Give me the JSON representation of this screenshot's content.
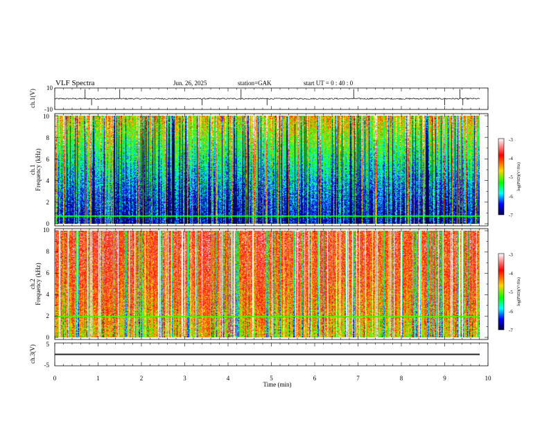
{
  "header": {
    "title": "VLF  Spectra",
    "date": "Jun. 26, 2025",
    "station": "station=GAK",
    "start": "start  UT  =   0  : 40 : 0"
  },
  "chart_data": [
    {
      "type": "line",
      "panel": "ch1-waveform",
      "ylabel": "ch.1(V)",
      "ylim": [
        -10,
        10
      ],
      "yticks": [
        "10",
        "-10"
      ],
      "xlim": [
        0,
        10
      ],
      "series": [
        {
          "baseline": 0,
          "noise_amplitude": 0.6,
          "spike_times": [
            0.7,
            0.85,
            1.5,
            3.4,
            4.3,
            4.9,
            6.9,
            9.0,
            9.35,
            9.42
          ]
        }
      ]
    },
    {
      "type": "heatmap",
      "panel": "ch1-spectrogram",
      "ylabel": "ch.1\nFrequency  (kHz)",
      "ylabel_lines": [
        "ch.1",
        "Frequency  (kHz)"
      ],
      "ylim": [
        0,
        10
      ],
      "yticks": [
        "0",
        "2",
        "4",
        "6",
        "8",
        "10"
      ],
      "xlim": [
        0,
        10
      ],
      "value_range": [
        -7,
        -3
      ],
      "dominant_low": -6.6,
      "dominant_high": -4.6,
      "colorbar": {
        "label": "log(PSD)(V²/Hz)",
        "ticks": [
          "-3",
          "-4",
          "-5",
          "-6",
          "-7"
        ],
        "colors": [
          "#ffffff",
          "#ff0000",
          "#ffd400",
          "#00ff00",
          "#00ffff",
          "#0000ff",
          "#000060"
        ]
      }
    },
    {
      "type": "heatmap",
      "panel": "ch2-spectrogram",
      "ylabel": "ch.2\nFrequency  (kHz)",
      "ylabel_lines": [
        "ch.2",
        "Frequency  (kHz)"
      ],
      "ylim": [
        0,
        10
      ],
      "yticks": [
        "0",
        "2",
        "4",
        "6",
        "8",
        "10"
      ],
      "xlim": [
        0,
        10
      ],
      "value_range": [
        -7,
        -3
      ],
      "dominant_low": -5.3,
      "dominant_high": -3.9,
      "colorbar": {
        "label": "log(PSD)(V²/Hz)",
        "ticks": [
          "-3",
          "-4",
          "-5",
          "-6",
          "-7"
        ],
        "colors": [
          "#ffffff",
          "#ff0000",
          "#ffd400",
          "#00ff00",
          "#00ffff",
          "#0000ff",
          "#000060"
        ]
      }
    },
    {
      "type": "line",
      "panel": "ch3-waveform",
      "ylabel": "ch.3(V)",
      "ylim": [
        -5,
        5
      ],
      "yticks": [
        "5",
        "-5"
      ],
      "xlim": [
        0,
        10
      ],
      "series": [
        {
          "baseline": 0,
          "band": [
            -0.3,
            0.3
          ]
        }
      ]
    }
  ],
  "xaxis": {
    "label": "Time  (min)",
    "ticks": [
      "0",
      "1",
      "2",
      "3",
      "4",
      "5",
      "6",
      "7",
      "8",
      "9",
      "10"
    ],
    "values": [
      0,
      1,
      2,
      3,
      4,
      5,
      6,
      7,
      8,
      9,
      10
    ]
  }
}
